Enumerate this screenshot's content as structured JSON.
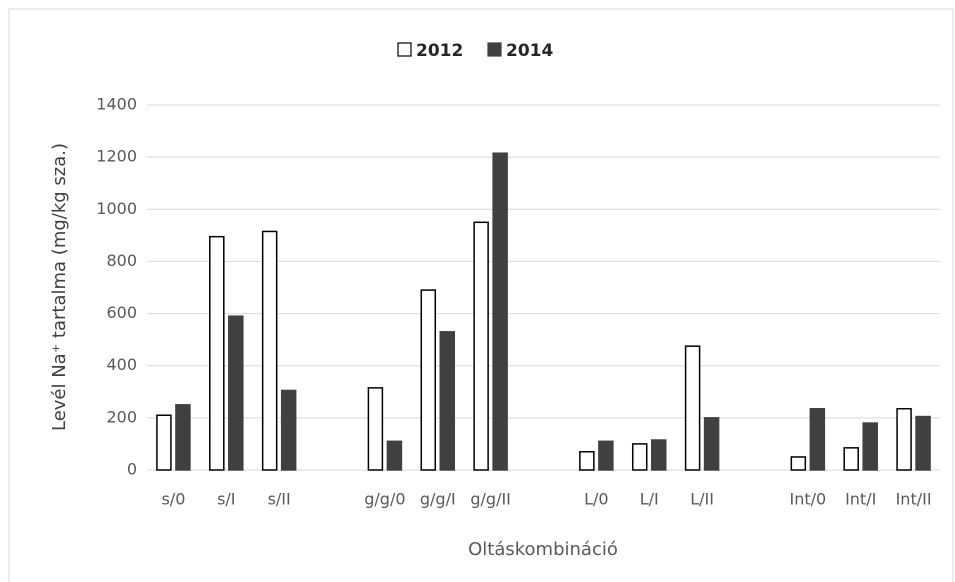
{
  "chart_data": {
    "type": "bar",
    "x_label": "Oltáskombináció",
    "y_label": "Levél Na⁺ tartalma (mg/kg sza.)",
    "categories": [
      "s/0",
      "s/I",
      "s/II",
      null,
      "g/g/0",
      "g/g/I",
      "g/g/II",
      null,
      "L/0",
      "L/I",
      "L/II",
      null,
      "Int/0",
      "Int/I",
      "Int/II"
    ],
    "series": [
      {
        "name": "2012",
        "color": "#ffffff",
        "values": [
          210,
          895,
          915,
          null,
          315,
          690,
          950,
          null,
          70,
          100,
          475,
          null,
          50,
          85,
          235
        ]
      },
      {
        "name": "2014",
        "color": "#404040",
        "values": [
          250,
          590,
          305,
          null,
          110,
          530,
          1215,
          null,
          110,
          115,
          200,
          null,
          235,
          180,
          205
        ]
      }
    ],
    "ylim": [
      0,
      1400
    ],
    "yticks": [
      0,
      200,
      400,
      600,
      800,
      1000,
      1200,
      1400
    ],
    "grid": true,
    "legend": "top"
  }
}
